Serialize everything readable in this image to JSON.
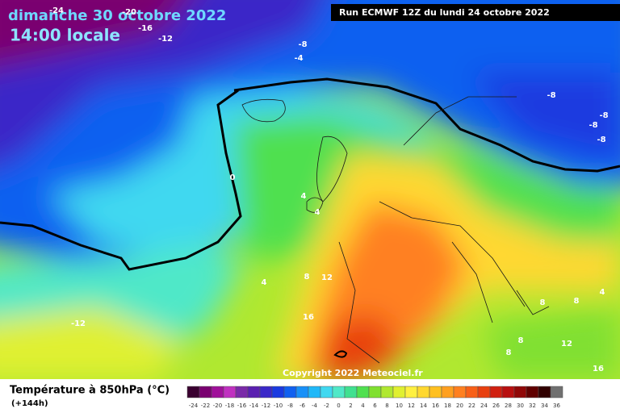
{
  "header": {
    "title": "dimanche 30 octobre 2022",
    "subtitle": "14:00 locale",
    "run": "Run ECMWF 12Z du lundi 24 octobre 2022"
  },
  "copyright": "Copyright 2022 Meteociel.fr",
  "legend": {
    "title": "Température à 850hPa (°C)",
    "subtitle": "(+144h)",
    "ticks": [
      -24,
      -22,
      -20,
      -18,
      -16,
      -14,
      -12,
      -10,
      -8,
      -6,
      -4,
      -2,
      0,
      2,
      4,
      6,
      8,
      10,
      12,
      14,
      16,
      18,
      20,
      22,
      24,
      26,
      28,
      30,
      32,
      34,
      36
    ],
    "colors": [
      "#3a0030",
      "#7a0070",
      "#a0109a",
      "#c030c0",
      "#7a2aa8",
      "#5a20b0",
      "#3a28c8",
      "#1a3ae0",
      "#1060f0",
      "#1890f8",
      "#20b8f8",
      "#40d8f0",
      "#50e8c8",
      "#40e090",
      "#50e050",
      "#80e030",
      "#b0e830",
      "#e0f030",
      "#fff040",
      "#ffd830",
      "#ffc020",
      "#ffa020",
      "#ff8020",
      "#f86018",
      "#e84010",
      "#d02010",
      "#b81010",
      "#900808",
      "#600000",
      "#300000",
      "#707070"
    ]
  },
  "contours": [
    -24,
    -20,
    -16,
    -12,
    -8,
    -4,
    -8,
    -8,
    -8,
    -8,
    0,
    4,
    4,
    4,
    8,
    12,
    16,
    -12,
    8,
    8,
    4,
    8,
    12,
    8,
    16
  ]
}
